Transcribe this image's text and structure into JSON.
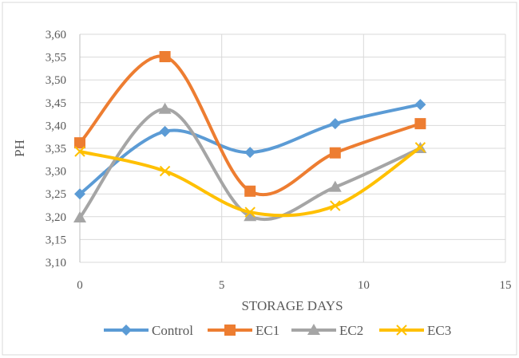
{
  "chart_data": {
    "type": "line",
    "title": "",
    "xlabel": "STORAGE DAYS",
    "ylabel": "PH",
    "xlim": [
      0,
      15
    ],
    "ylim": [
      3.1,
      3.6
    ],
    "xticks": [
      0,
      5,
      10,
      15
    ],
    "yticks": [
      "3,10",
      "3,15",
      "3,20",
      "3,25",
      "3,30",
      "3,35",
      "3,40",
      "3,45",
      "3,50",
      "3,55",
      "3,60"
    ],
    "grid": true,
    "smooth": true,
    "legend_position": "bottom",
    "x": [
      0,
      3,
      6,
      9,
      12
    ],
    "series": [
      {
        "name": "Control",
        "color": "#5b9bd5",
        "marker": "diamond",
        "values": [
          3.25,
          3.387,
          3.341,
          3.404,
          3.446
        ]
      },
      {
        "name": "EC1",
        "color": "#ed7d31",
        "marker": "square",
        "values": [
          3.362,
          3.551,
          3.256,
          3.34,
          3.404
        ]
      },
      {
        "name": "EC2",
        "color": "#a5a5a5",
        "marker": "triangle",
        "values": [
          3.198,
          3.436,
          3.201,
          3.265,
          3.35
        ]
      },
      {
        "name": "EC3",
        "color": "#ffc000",
        "marker": "x",
        "values": [
          3.343,
          3.3,
          3.21,
          3.224,
          3.352
        ]
      }
    ]
  }
}
